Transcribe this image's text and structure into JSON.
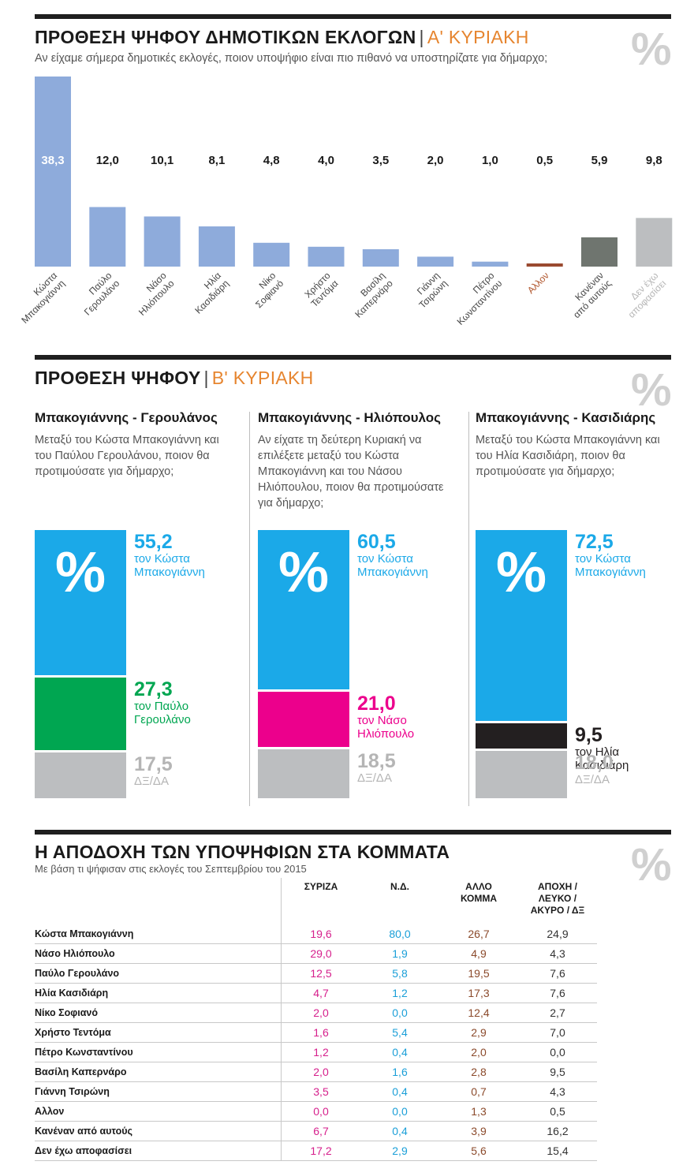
{
  "section1": {
    "title": "ΠΡΟΘΕΣΗ ΨΗΦΟΥ ΔΗΜΟΤΙΚΩΝ ΕΚΛΟΓΩΝ",
    "separator": "|",
    "round": "Α' ΚΥΡΙΑΚΗ",
    "question": "Αν είχαμε σήμερα δημοτικές εκλογές, ποιον υποψήφιο είναι πιο πιθανό να υποστηρίζατε για δήμαρχο;",
    "percent_symbol": "%"
  },
  "section2": {
    "title": "ΠΡΟΘΕΣΗ ΨΗΦΟΥ",
    "separator": "|",
    "round": "Β' ΚΥΡΙΑΚΗ",
    "percent_symbol": "%"
  },
  "section3": {
    "title": "Η ΑΠΟΔΟΧΗ ΤΩΝ ΥΠΟΨΗΦΙΩΝ ΣΤΑ ΚΟΜΜΑΤΑ",
    "subtitle": "Με βάση τι ψήφισαν στις εκλογές του Σεπτεμβρίου του 2015",
    "percent_symbol": "%"
  },
  "chart_data": [
    {
      "type": "bar",
      "title": "ΠΡΟΘΕΣΗ ΨΗΦΟΥ ΔΗΜΟΤΙΚΩΝ ΕΚΛΟΓΩΝ",
      "categories": [
        "Κώστα Μπακογιάννη",
        "Παύλο Γερουλάνο",
        "Νάσο Ηλιόπουλο",
        "Ηλία Κασιδιάρη",
        "Νίκο Σοφιανό",
        "Χρήστο Τεντόμα",
        "Βασίλη Καπερνάρο",
        "Γιάννη Τσιρώνη",
        "Πέτρο Κωνσταντίνου",
        "Αλλον",
        "Κανέναν από αυτούς",
        "Δεν έχω αποφασίσει"
      ],
      "label_lines": [
        [
          "Κώστα",
          "Μπακογιάννη"
        ],
        [
          "Παύλο",
          "Γερουλάνο"
        ],
        [
          "Νάσο",
          "Ηλιόπουλο"
        ],
        [
          "Ηλία",
          "Κασιδιάρη"
        ],
        [
          "Νίκο",
          "Σοφιανό"
        ],
        [
          "Χρήστο",
          "Τεντόμα"
        ],
        [
          "Βασίλη",
          "Καπερνάρο"
        ],
        [
          "Γιάννη",
          "Τσιρώνη"
        ],
        [
          "Πέτρο",
          "Κωνσταντίνου"
        ],
        [
          "Αλλον"
        ],
        [
          "Κανέναν",
          "από αυτούς"
        ],
        [
          "Δεν έχω",
          "αποφασίσει"
        ]
      ],
      "values": [
        38.3,
        12.0,
        10.1,
        8.1,
        4.8,
        4.0,
        3.5,
        2.0,
        1.0,
        0.5,
        5.9,
        9.8
      ],
      "value_labels": [
        "38,3",
        "12,0",
        "10,1",
        "8,1",
        "4,8",
        "4,0",
        "3,5",
        "2,0",
        "1,0",
        "0,5",
        "5,9",
        "9,8"
      ],
      "colors": [
        "#8eabdb",
        "#8eabdb",
        "#8eabdb",
        "#8eabdb",
        "#8eabdb",
        "#8eabdb",
        "#8eabdb",
        "#8eabdb",
        "#8eabdb",
        "#9a4a30",
        "#6f756f",
        "#bcbec0"
      ],
      "label_colors": [
        "#444444",
        "#444444",
        "#444444",
        "#444444",
        "#444444",
        "#444444",
        "#444444",
        "#444444",
        "#444444",
        "#b0552c",
        "#444444",
        "#b5b5b5"
      ],
      "ylim": [
        0,
        38.3
      ]
    },
    {
      "type": "bar",
      "stacked": true,
      "title": "Μπακογιάννης - Γερουλάνος",
      "question": "Μεταξύ του Κώστα Μπακογιάννη και του Παύλου Γερουλάνου, ποιον θα προτιμούσατε για δήμαρχο;",
      "series": [
        {
          "value": 55.2,
          "value_label": "55,2",
          "desc": [
            "τον Κώστα",
            "Μπακογιάννη"
          ],
          "color": "#1ba9e8",
          "text_color": "#1ba9e8"
        },
        {
          "value": 27.3,
          "value_label": "27,3",
          "desc": [
            "τον Παύλο",
            "Γερουλάνο"
          ],
          "color": "#00a651",
          "text_color": "#00a651"
        },
        {
          "value": 17.5,
          "value_label": "17,5",
          "desc": [
            "ΔΞ/ΔΑ"
          ],
          "color": "#bcbec0",
          "text_color": "#b5b5b5"
        }
      ]
    },
    {
      "type": "bar",
      "stacked": true,
      "title": "Μπακογιάννης - Ηλιόπουλος",
      "question": "Αν είχατε τη δεύτερη Κυριακή να επιλέξετε μεταξύ του Κώστα Μπακογιάννη και του Νάσου Ηλιόπουλου, ποιον θα προτιμούσατε για δήμαρχο;",
      "series": [
        {
          "value": 60.5,
          "value_label": "60,5",
          "desc": [
            "τον Κώστα",
            "Μπακογιάννη"
          ],
          "color": "#1ba9e8",
          "text_color": "#1ba9e8"
        },
        {
          "value": 21.0,
          "value_label": "21,0",
          "desc": [
            "τον Νάσο",
            "Ηλιόπουλο"
          ],
          "color": "#ec008c",
          "text_color": "#ec008c"
        },
        {
          "value": 18.5,
          "value_label": "18,5",
          "desc": [
            "ΔΞ/ΔΑ"
          ],
          "color": "#bcbec0",
          "text_color": "#b5b5b5"
        }
      ]
    },
    {
      "type": "bar",
      "stacked": true,
      "title": "Μπακογιάννης - Κασιδιάρης",
      "question": "Μεταξύ του Κώστα Μπακογιάννη και του Ηλία Κασιδιάρη, ποιον θα προτιμούσατε για δήμαρχο;",
      "series": [
        {
          "value": 72.5,
          "value_label": "72,5",
          "desc": [
            "τον Κώστα",
            "Μπακογιάννη"
          ],
          "color": "#1ba9e8",
          "text_color": "#1ba9e8"
        },
        {
          "value": 9.5,
          "value_label": "9,5",
          "desc": [
            "τον Ηλία",
            "Κασιδιάρη"
          ],
          "color": "#231f20",
          "text_color": "#231f20"
        },
        {
          "value": 18.0,
          "value_label": "18,0",
          "desc": [
            "ΔΞ/ΔΑ"
          ],
          "color": "#bcbec0",
          "text_color": "#b5b5b5"
        }
      ]
    },
    {
      "type": "table",
      "title": "Η ΑΠΟΔΟΧΗ ΤΩΝ ΥΠΟΨΗΦΙΩΝ ΣΤΑ ΚΟΜΜΑΤΑ",
      "columns": [
        [
          "ΣΥΡΙΖΑ"
        ],
        [
          "Ν.Δ."
        ],
        [
          "ΑΛΛΟ",
          "ΚΟΜΜΑ"
        ],
        [
          "ΑΠΟΧΗ /",
          "ΛΕΥΚΟ /",
          "ΑΚΥΡΟ / ΔΞ"
        ]
      ],
      "rows": [
        {
          "name": "Κώστα Μπακογιάννη",
          "values": [
            "19,6",
            "80,0",
            "26,7",
            "24,9"
          ]
        },
        {
          "name": "Νάσο Ηλιόπουλο",
          "values": [
            "29,0",
            "1,9",
            "4,9",
            "4,3"
          ]
        },
        {
          "name": "Παύλο Γερουλάνο",
          "values": [
            "12,5",
            "5,8",
            "19,5",
            "7,6"
          ]
        },
        {
          "name": "Ηλία Κασιδιάρη",
          "values": [
            "4,7",
            "1,2",
            "17,3",
            "7,6"
          ]
        },
        {
          "name": "Νίκο Σοφιανό",
          "values": [
            "2,0",
            "0,0",
            "12,4",
            "2,7"
          ]
        },
        {
          "name": "Χρήστο Τεντόμα",
          "values": [
            "1,6",
            "5,4",
            "2,9",
            "7,0"
          ]
        },
        {
          "name": "Πέτρο Κωνσταντίνου",
          "values": [
            "1,2",
            "0,4",
            "2,0",
            "0,0"
          ]
        },
        {
          "name": "Βασίλη Καπερνάρο",
          "values": [
            "2,0",
            "1,6",
            "2,8",
            "9,5"
          ]
        },
        {
          "name": "Γιάννη Τσιρώνη",
          "values": [
            "3,5",
            "0,4",
            "0,7",
            "4,3"
          ]
        },
        {
          "name": "Αλλον",
          "values": [
            "0,0",
            "0,0",
            "1,3",
            "0,5"
          ]
        },
        {
          "name": "Κανέναν από αυτούς",
          "values": [
            "6,7",
            "0,4",
            "3,9",
            "16,2"
          ]
        },
        {
          "name": "Δεν έχω αποφασίσει",
          "values": [
            "17,2",
            "2,9",
            "5,6",
            "15,4"
          ]
        }
      ]
    }
  ]
}
